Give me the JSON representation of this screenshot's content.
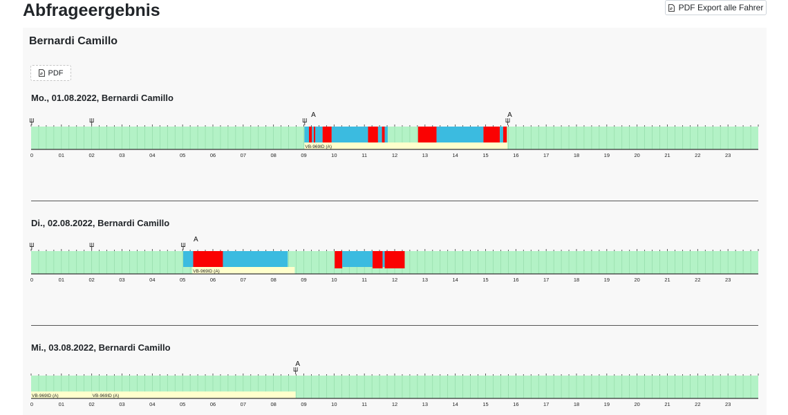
{
  "page": {
    "title": "Abfrageergebnis",
    "export_label": "PDF Export alle Fahrer"
  },
  "driver": {
    "name": "Bernardi Camillo",
    "pdf_label": "PDF"
  },
  "colors": {
    "rest": "#b3f2c6",
    "drive": "#fa0202",
    "work": "#3bbbe0",
    "vehicle": "#ffffcc",
    "bar_line": "#8fd8a4"
  },
  "hour_labels": [
    "0",
    "01",
    "02",
    "03",
    "04",
    "05",
    "06",
    "07",
    "08",
    "09",
    "10",
    "11",
    "12",
    "13",
    "14",
    "15",
    "16",
    "17",
    "18",
    "19",
    "20",
    "21",
    "22",
    "23"
  ],
  "days": [
    {
      "title": "Mo., 01.08.2022, Bernardi Camillo",
      "card_markers": [
        0.02,
        2.0,
        9.03,
        15.73
      ],
      "A_markers": [
        9.25,
        15.73
      ],
      "segments": [
        {
          "start": 9.02,
          "end": 9.17,
          "type": "work"
        },
        {
          "start": 9.17,
          "end": 9.27,
          "type": "drive"
        },
        {
          "start": 9.27,
          "end": 9.33,
          "type": "work"
        },
        {
          "start": 9.33,
          "end": 9.38,
          "type": "drive"
        },
        {
          "start": 9.38,
          "end": 9.62,
          "type": "work"
        },
        {
          "start": 9.62,
          "end": 9.92,
          "type": "drive"
        },
        {
          "start": 9.92,
          "end": 11.12,
          "type": "work"
        },
        {
          "start": 11.12,
          "end": 11.45,
          "type": "drive"
        },
        {
          "start": 11.45,
          "end": 11.58,
          "type": "work"
        },
        {
          "start": 11.58,
          "end": 11.67,
          "type": "drive"
        },
        {
          "start": 11.67,
          "end": 11.77,
          "type": "work"
        },
        {
          "start": 12.77,
          "end": 13.38,
          "type": "drive"
        },
        {
          "start": 13.38,
          "end": 14.93,
          "type": "work"
        },
        {
          "start": 14.93,
          "end": 15.47,
          "type": "drive"
        },
        {
          "start": 15.47,
          "end": 15.58,
          "type": "work"
        },
        {
          "start": 15.58,
          "end": 15.7,
          "type": "drive"
        }
      ],
      "vehicles": [
        {
          "start": 9.02,
          "end": 15.72,
          "label": "VB-969ID (A)"
        }
      ]
    },
    {
      "title": "Di., 02.08.2022, Bernardi Camillo",
      "card_markers": [
        0.02,
        2.0,
        5.02
      ],
      "A_markers": [
        5.37
      ],
      "segments": [
        {
          "start": 5.02,
          "end": 5.35,
          "type": "work"
        },
        {
          "start": 5.35,
          "end": 6.33,
          "type": "drive"
        },
        {
          "start": 6.33,
          "end": 8.47,
          "type": "work"
        },
        {
          "start": 10.02,
          "end": 10.27,
          "type": "drive"
        },
        {
          "start": 10.27,
          "end": 11.27,
          "type": "work"
        },
        {
          "start": 11.27,
          "end": 11.6,
          "type": "drive"
        },
        {
          "start": 11.6,
          "end": 11.67,
          "type": "work"
        },
        {
          "start": 11.67,
          "end": 12.33,
          "type": "drive"
        }
      ],
      "vehicles": [
        {
          "start": 5.32,
          "end": 8.7,
          "label": "VB-969ID (A)"
        }
      ]
    },
    {
      "title": "Mi., 03.08.2022, Bernardi Camillo",
      "card_markers": [
        8.73
      ],
      "A_markers": [
        8.73
      ],
      "segments": [],
      "vehicles": [
        {
          "start": 0.0,
          "end": 2.0,
          "label": "VB-969ID (A)"
        },
        {
          "start": 2.0,
          "end": 8.73,
          "label": "VB-969ID (A)"
        }
      ]
    }
  ]
}
